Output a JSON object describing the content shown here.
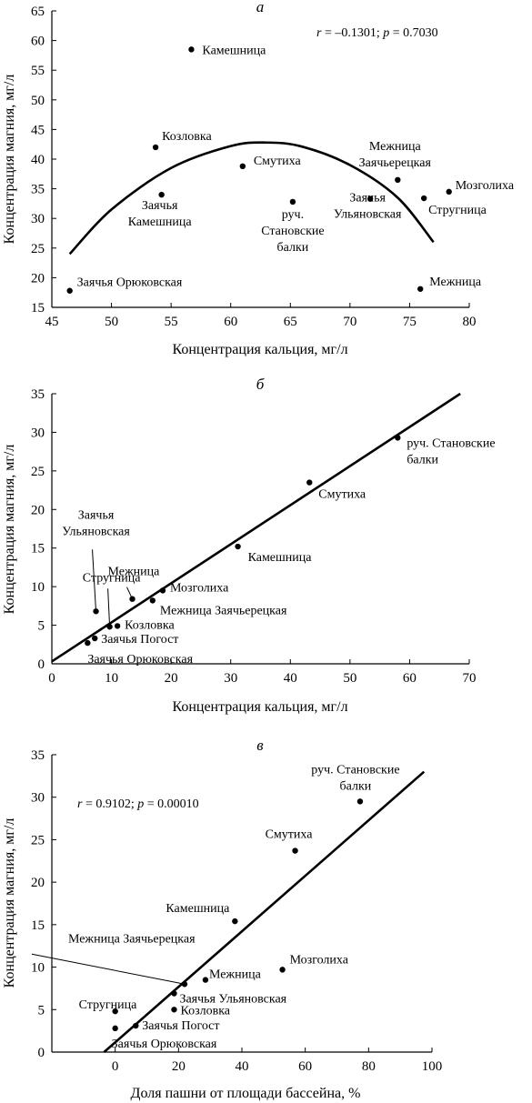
{
  "chart_data": [
    {
      "type": "scatter",
      "panel_letter": "а",
      "xlabel": "Концентрация кальция, мг/л",
      "ylabel": "Концентрация магния, мг/л",
      "xlim": [
        45,
        80
      ],
      "ylim": [
        15,
        65
      ],
      "xticks": [
        45,
        50,
        55,
        60,
        65,
        70,
        75,
        80
      ],
      "yticks": [
        15,
        20,
        25,
        30,
        35,
        40,
        45,
        50,
        55,
        60,
        65
      ],
      "annotation": [
        "r = –0.1301; ",
        "p",
        " = 0.7030"
      ],
      "fit": {
        "kind": "quadratic",
        "x": [
          46.5,
          50,
          55,
          60,
          63,
          66,
          70,
          74,
          77
        ],
        "y": [
          24.0,
          31.5,
          38.5,
          42.2,
          42.8,
          42.1,
          39.0,
          33.5,
          26.0
        ]
      },
      "points": [
        {
          "label": [
            "Камешница"
          ],
          "x": 56.7,
          "y": 58.5
        },
        {
          "label": [
            "Козловка"
          ],
          "x": 53.7,
          "y": 42.0
        },
        {
          "label": [
            "Смутиха"
          ],
          "x": 61.0,
          "y": 38.8
        },
        {
          "label": [
            "Заячья",
            "Камешница"
          ],
          "x": 54.2,
          "y": 34.0
        },
        {
          "label": [
            "руч.",
            "Становские",
            "балки"
          ],
          "x": 65.2,
          "y": 32.8
        },
        {
          "label": [
            "Межница",
            "Заячьерецкая"
          ],
          "x": 74.0,
          "y": 36.5
        },
        {
          "label": [
            "Заячья",
            "Ульяновская"
          ],
          "x": 71.7,
          "y": 33.3
        },
        {
          "label": [
            "Мозголиха"
          ],
          "x": 78.3,
          "y": 34.5
        },
        {
          "label": [
            "Стругница"
          ],
          "x": 76.2,
          "y": 33.4
        },
        {
          "label": [
            "Заячья Орюковская"
          ],
          "x": 46.5,
          "y": 17.8
        },
        {
          "label": [
            "Межница"
          ],
          "x": 75.9,
          "y": 18.1
        }
      ]
    },
    {
      "type": "scatter",
      "panel_letter": "б",
      "xlabel": "Концентрация кальция, мг/л",
      "ylabel": "Концентрация магния, мг/л",
      "xlim": [
        0,
        70
      ],
      "ylim": [
        0,
        35
      ],
      "xticks": [
        0,
        10,
        20,
        30,
        40,
        50,
        60,
        70
      ],
      "yticks": [
        0,
        5,
        10,
        15,
        20,
        25,
        30,
        35
      ],
      "fit": {
        "kind": "linear",
        "x": [
          0,
          68.5
        ],
        "y": [
          0.3,
          35.0
        ]
      },
      "points": [
        {
          "label": [
            "руч. Становские",
            "балки"
          ],
          "x": 58.0,
          "y": 29.3
        },
        {
          "label": [
            "Смутиха"
          ],
          "x": 43.2,
          "y": 23.5
        },
        {
          "label": [
            "Камешница"
          ],
          "x": 31.2,
          "y": 15.2
        },
        {
          "label": [
            "Заячья",
            "Ульяновская"
          ],
          "x": 7.4,
          "y": 6.8
        },
        {
          "label": [
            "Стругница"
          ],
          "x": 9.7,
          "y": 4.8
        },
        {
          "label": [
            "Межница"
          ],
          "x": 13.5,
          "y": 8.4
        },
        {
          "label": [
            "Мозголиха"
          ],
          "x": 18.6,
          "y": 9.5
        },
        {
          "label": [
            "Межница Заячьерецкая"
          ],
          "x": 16.9,
          "y": 8.2
        },
        {
          "label": [
            "Козловка"
          ],
          "x": 11.0,
          "y": 4.9
        },
        {
          "label": [
            "Заячья Погост"
          ],
          "x": 7.2,
          "y": 3.3
        },
        {
          "label": [
            "Заячья Орюковская"
          ],
          "x": 6.0,
          "y": 2.7
        }
      ]
    },
    {
      "type": "scatter",
      "panel_letter": "в",
      "xlabel": "Доля пашни от площади бассейна, %",
      "ylabel": "Концентрация магния, мг/л",
      "xlim": [
        -20,
        100
      ],
      "ylim": [
        0,
        35
      ],
      "xticks": [
        0,
        20,
        40,
        60,
        80,
        100
      ],
      "yticks": [
        0,
        5,
        10,
        15,
        20,
        25,
        30,
        35
      ],
      "annotation": [
        "r",
        " = 0.9102; ",
        "p",
        " = 0.00010"
      ],
      "fit": {
        "kind": "linear",
        "x": [
          -3.5,
          97.5
        ],
        "y": [
          0.0,
          33.0
        ]
      },
      "points": [
        {
          "label": [
            "руч. Становские",
            "балки"
          ],
          "x": 77.3,
          "y": 29.5
        },
        {
          "label": [
            "Смутиха"
          ],
          "x": 56.8,
          "y": 23.7
        },
        {
          "label": [
            "Камешница"
          ],
          "x": 37.8,
          "y": 15.4
        },
        {
          "label": [
            "Мозголиха"
          ],
          "x": 52.8,
          "y": 9.7
        },
        {
          "label": [
            "Межница"
          ],
          "x": 28.5,
          "y": 8.5
        },
        {
          "label": [
            "Межница Заячьерецкая"
          ],
          "x": 21.9,
          "y": 8.0
        },
        {
          "label": [
            "Заячья Ульяновская"
          ],
          "x": 18.6,
          "y": 6.9
        },
        {
          "label": [
            "Стругница"
          ],
          "x": 0.0,
          "y": 4.8
        },
        {
          "label": [
            "Козловка"
          ],
          "x": 18.6,
          "y": 5.0
        },
        {
          "label": [
            "Заячья Погост"
          ],
          "x": 6.5,
          "y": 3.1
        },
        {
          "label": [
            "Заячья Орюковская"
          ],
          "x": 0.0,
          "y": 2.8
        }
      ]
    }
  ]
}
